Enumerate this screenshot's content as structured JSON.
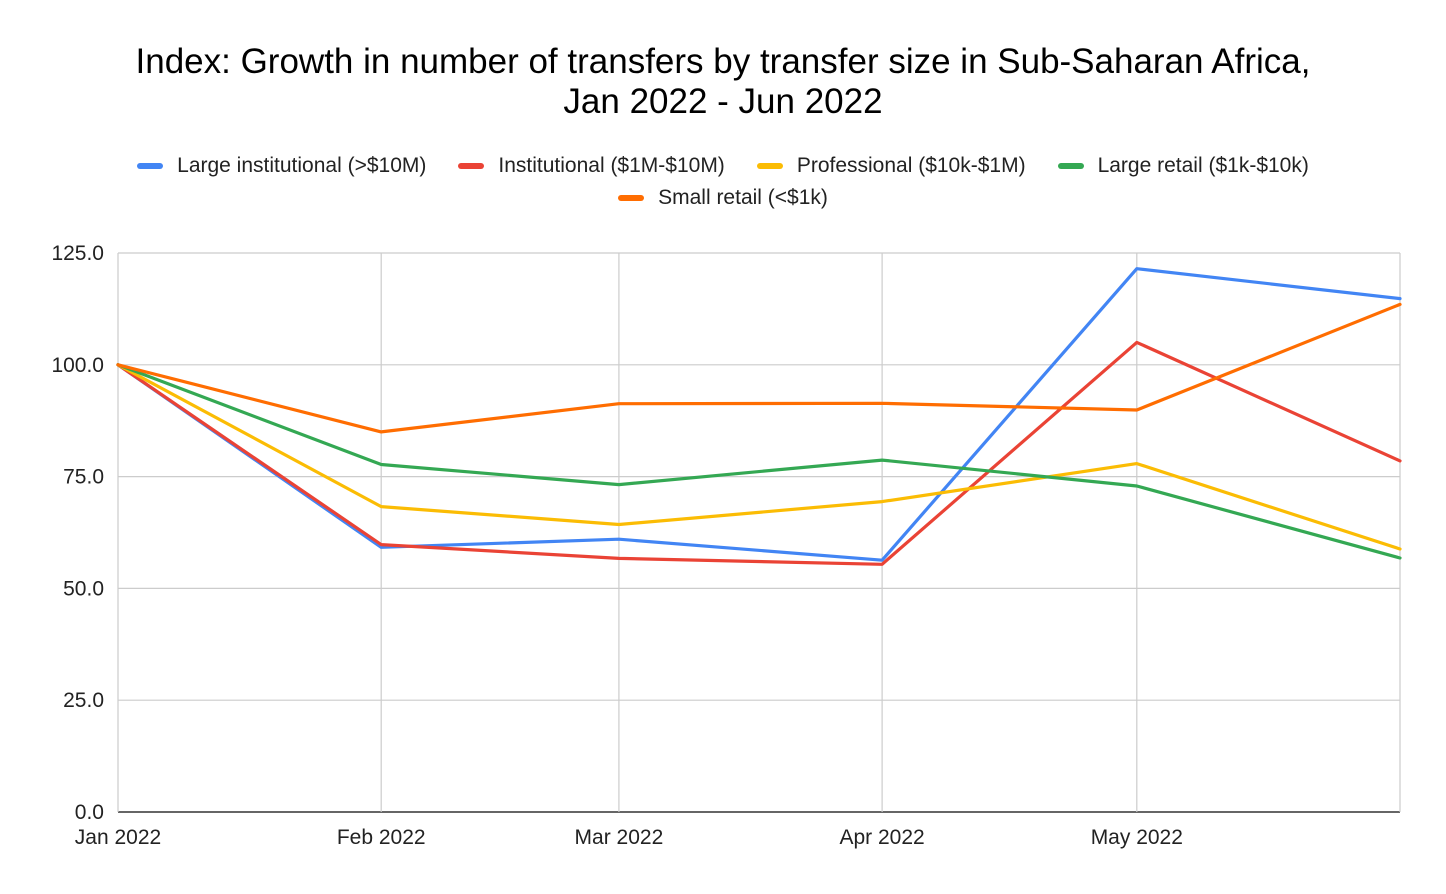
{
  "chart_data": {
    "type": "line",
    "title_lines": [
      "Index: Growth in number of transfers by transfer size in Sub-Saharan Africa,",
      "Jan 2022 - Jun 2022"
    ],
    "categories": [
      "Jan 2022",
      "Feb 2022",
      "Mar 2022",
      "Apr 2022",
      "May 2022",
      "Jun 2022"
    ],
    "x_tick_labels": [
      "Jan 2022",
      "Feb 2022",
      "Mar 2022",
      "Apr 2022",
      "May 2022"
    ],
    "x_tick_dates": [
      "2022-01-01",
      "2022-02-01",
      "2022-03-01",
      "2022-04-01",
      "2022-05-01"
    ],
    "x_dates": [
      "2022-01-01",
      "2022-02-01",
      "2022-03-01",
      "2022-04-01",
      "2022-05-01",
      "2022-06-01"
    ],
    "ylim": [
      0,
      125
    ],
    "y_ticks": [
      "0.0",
      "25.0",
      "50.0",
      "75.0",
      "100.0",
      "125.0"
    ],
    "grid": true,
    "legend_position": "top",
    "series": [
      {
        "name": "Large institutional (>$10M)",
        "color": "#4285F4",
        "values": [
          100,
          59.2,
          61.0,
          56.3,
          121.5,
          114.8
        ]
      },
      {
        "name": "Institutional ($1M-$10M)",
        "color": "#EA4335",
        "values": [
          100,
          59.8,
          56.7,
          55.4,
          105.0,
          78.5
        ]
      },
      {
        "name": "Professional ($10k-$1M)",
        "color": "#FBBC04",
        "values": [
          100,
          68.3,
          64.3,
          69.4,
          77.9,
          58.8
        ]
      },
      {
        "name": "Large retail ($1k-$10k)",
        "color": "#34A853",
        "values": [
          100,
          77.7,
          73.2,
          78.7,
          72.9,
          56.8
        ]
      },
      {
        "name": "Small retail (<$1k)",
        "color": "#FF6D01",
        "values": [
          100,
          85.0,
          91.3,
          91.4,
          89.9,
          113.5
        ]
      }
    ]
  }
}
